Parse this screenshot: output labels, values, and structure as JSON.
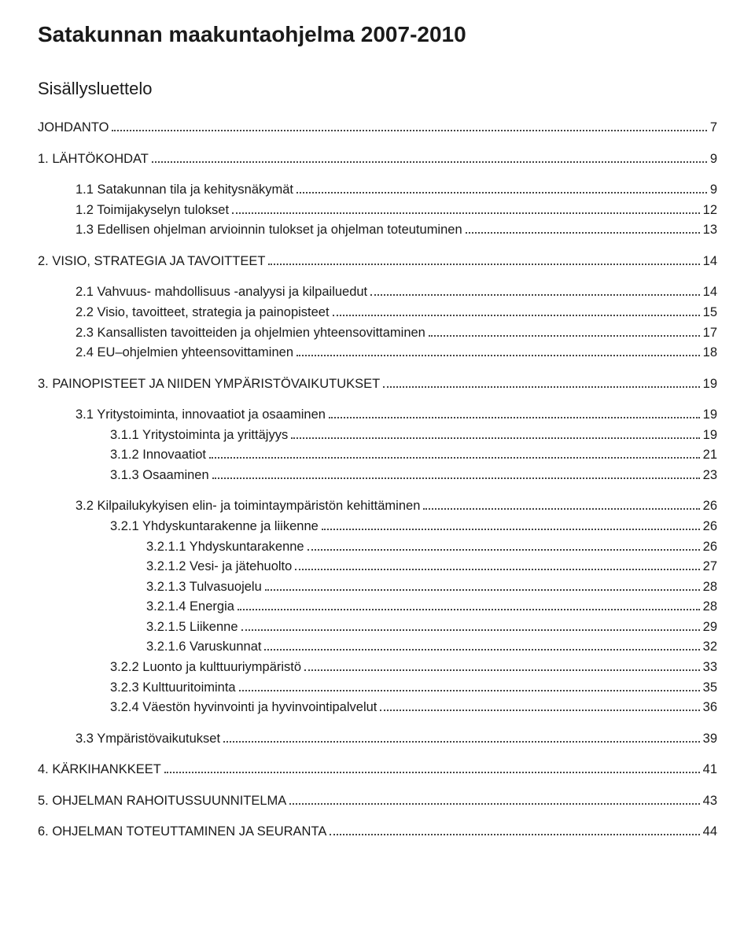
{
  "title": "Satakunnan maakuntaohjelma 2007-2010",
  "subtitle": "Sisällysluettelo",
  "toc": [
    {
      "level": 0,
      "caps": true,
      "gap": false,
      "label": "JOHDANTO",
      "page": "7"
    },
    {
      "level": 0,
      "caps": true,
      "gap": true,
      "label": "1.  LÄHTÖKOHDAT",
      "page": "9"
    },
    {
      "level": 1,
      "caps": false,
      "gap": true,
      "label": "1.1   Satakunnan tila ja kehitysnäkymät",
      "page": "9"
    },
    {
      "level": 1,
      "caps": false,
      "gap": false,
      "label": "1.2   Toimijakyselyn tulokset",
      "page": "12"
    },
    {
      "level": 1,
      "caps": false,
      "gap": false,
      "label": "1.3   Edellisen ohjelman arvioinnin tulokset ja ohjelman toteutuminen",
      "page": "13"
    },
    {
      "level": 0,
      "caps": true,
      "gap": true,
      "label": "2.  VISIO, STRATEGIA JA TAVOITTEET",
      "page": "14"
    },
    {
      "level": 1,
      "caps": false,
      "gap": true,
      "label": "2.1   Vahvuus- mahdollisuus -analyysi ja kilpailuedut",
      "page": "14"
    },
    {
      "level": 1,
      "caps": false,
      "gap": false,
      "label": "2.2   Visio, tavoitteet, strategia ja painopisteet",
      "page": "15"
    },
    {
      "level": 1,
      "caps": false,
      "gap": false,
      "label": "2.3   Kansallisten tavoitteiden ja ohjelmien yhteensovittaminen",
      "page": "17"
    },
    {
      "level": 1,
      "caps": false,
      "gap": false,
      "label": "2.4   EU–ohjelmien yhteensovittaminen",
      "page": "18"
    },
    {
      "level": 0,
      "caps": true,
      "gap": true,
      "label": "3.  PAINOPISTEET JA NIIDEN YMPÄRISTÖVAIKUTUKSET",
      "page": "19"
    },
    {
      "level": 1,
      "caps": false,
      "gap": true,
      "label": "3.1   Yritystoiminta, innovaatiot ja osaaminen",
      "page": "19"
    },
    {
      "level": 2,
      "caps": false,
      "gap": false,
      "label": "3.1.1   Yritystoiminta ja yrittäjyys",
      "page": "19"
    },
    {
      "level": 2,
      "caps": false,
      "gap": false,
      "label": "3.1.2   Innovaatiot",
      "page": "21"
    },
    {
      "level": 2,
      "caps": false,
      "gap": false,
      "label": "3.1.3   Osaaminen",
      "page": "23"
    },
    {
      "level": 1,
      "caps": false,
      "gap": true,
      "label": "3.2   Kilpailukykyisen elin- ja toimintaympäristön kehittäminen",
      "page": "26"
    },
    {
      "level": 2,
      "caps": false,
      "gap": false,
      "label": "3.2.1   Yhdyskuntarakenne ja liikenne",
      "page": "26"
    },
    {
      "level": 3,
      "caps": false,
      "gap": false,
      "label": "3.2.1.1  Yhdyskuntarakenne",
      "page": "26"
    },
    {
      "level": 3,
      "caps": false,
      "gap": false,
      "label": "3.2.1.2  Vesi- ja jätehuolto",
      "page": "27"
    },
    {
      "level": 3,
      "caps": false,
      "gap": false,
      "label": "3.2.1.3  Tulvasuojelu",
      "page": "28"
    },
    {
      "level": 3,
      "caps": false,
      "gap": false,
      "label": "3.2.1.4   Energia",
      "page": "28"
    },
    {
      "level": 3,
      "caps": false,
      "gap": false,
      "label": "3.2.1.5   Liikenne",
      "page": "29"
    },
    {
      "level": 3,
      "caps": false,
      "gap": false,
      "label": "3.2.1.6  Varuskunnat",
      "page": "32"
    },
    {
      "level": 2,
      "caps": false,
      "gap": false,
      "label": "3.2.2   Luonto ja kulttuuriympäristö",
      "page": "33"
    },
    {
      "level": 2,
      "caps": false,
      "gap": false,
      "label": "3.2.3   Kulttuuritoiminta",
      "page": "35"
    },
    {
      "level": 2,
      "caps": false,
      "gap": false,
      "label": "3.2.4   Väestön hyvinvointi ja hyvinvointipalvelut",
      "page": "36"
    },
    {
      "level": 1,
      "caps": false,
      "gap": true,
      "label": "3.3   Ympäristövaikutukset",
      "page": "39"
    },
    {
      "level": 0,
      "caps": true,
      "gap": true,
      "label": "4.  KÄRKIHANKKEET",
      "page": "41"
    },
    {
      "level": 0,
      "caps": true,
      "gap": true,
      "label": "5.  OHJELMAN RAHOITUSSUUNNITELMA",
      "page": "43"
    },
    {
      "level": 0,
      "caps": true,
      "gap": true,
      "label": "6.  OHJELMAN TOTEUTTAMINEN JA SEURANTA",
      "page": "44"
    }
  ]
}
